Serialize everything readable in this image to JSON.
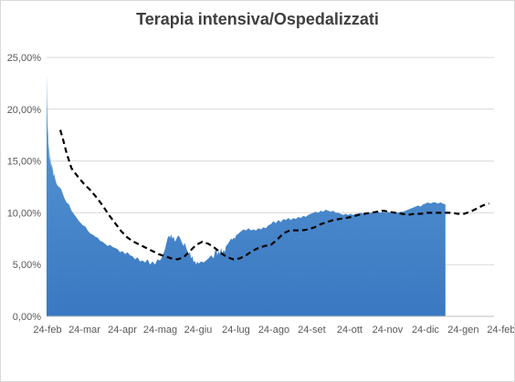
{
  "chart_data": {
    "type": "area",
    "title": "Terapia intensiva/Ospedalizzati",
    "xlabel": "",
    "ylabel": "",
    "ylim": [
      0,
      25
    ],
    "y_ticks": [
      "0,00%",
      "5,00%",
      "10,00%",
      "15,00%",
      "20,00%",
      "25,00%"
    ],
    "x_ticks": [
      "24-feb",
      "24-mar",
      "24-apr",
      "24-mag",
      "24-giu",
      "24-lug",
      "24-ago",
      "24-set",
      "24-ott",
      "24-nov",
      "24-dic",
      "24-gen",
      "24-feb"
    ],
    "grid": true,
    "legend": "none",
    "colors": {
      "area_top": "#5b9bd5",
      "area_bottom": "#3a78c2",
      "line": "#000000",
      "grid": "#d9d9d9",
      "axis": "#bfbfbf"
    },
    "series": [
      {
        "type": "area",
        "points": [
          [
            0,
            23.5
          ],
          [
            0.3,
            21.0
          ],
          [
            0.6,
            19.5
          ],
          [
            0.9,
            17.5
          ],
          [
            1.2,
            18.5
          ],
          [
            1.5,
            16.0
          ],
          [
            1.8,
            16.8
          ],
          [
            2.1,
            15.2
          ],
          [
            2.4,
            16.0
          ],
          [
            2.7,
            14.8
          ],
          [
            3.0,
            15.4
          ],
          [
            3.5,
            14.5
          ],
          [
            4.0,
            14.8
          ],
          [
            4.5,
            14.0
          ],
          [
            5,
            14.6
          ],
          [
            5.5,
            13.5
          ],
          [
            6,
            13.8
          ],
          [
            7,
            13.2
          ],
          [
            8,
            12.8
          ],
          [
            9,
            12.6
          ],
          [
            10,
            12.5
          ],
          [
            11,
            12.4
          ],
          [
            12,
            12.2
          ],
          [
            14,
            11.5
          ],
          [
            16,
            11.0
          ],
          [
            18,
            10.8
          ],
          [
            20,
            10.2
          ],
          [
            23,
            9.7
          ],
          [
            26,
            9.2
          ],
          [
            29,
            8.8
          ],
          [
            31,
            8.7
          ],
          [
            33,
            8.3
          ],
          [
            35,
            8.0
          ],
          [
            37,
            7.9
          ],
          [
            39,
            7.7
          ],
          [
            41,
            7.6
          ],
          [
            43,
            7.3
          ],
          [
            45,
            7.2
          ],
          [
            47,
            7.0
          ],
          [
            49,
            6.8
          ],
          [
            51,
            6.9
          ],
          [
            53,
            6.7
          ],
          [
            55,
            6.6
          ],
          [
            57,
            6.5
          ],
          [
            59,
            6.2
          ],
          [
            61,
            6.3
          ],
          [
            63,
            6.0
          ],
          [
            65,
            6.2
          ],
          [
            67,
            5.9
          ],
          [
            69,
            5.8
          ],
          [
            71,
            5.5
          ],
          [
            73,
            5.7
          ],
          [
            75,
            5.3
          ],
          [
            77,
            5.4
          ],
          [
            79,
            5.2
          ],
          [
            81,
            5.5
          ],
          [
            83,
            5.0
          ],
          [
            85,
            5.3
          ],
          [
            87,
            5.0
          ],
          [
            89,
            5.5
          ],
          [
            91,
            5.4
          ],
          [
            93,
            5.8
          ],
          [
            95,
            6.5
          ],
          [
            96,
            7.0
          ],
          [
            97,
            7.5
          ],
          [
            98,
            7.8
          ],
          [
            99,
            7.6
          ],
          [
            100,
            7.9
          ],
          [
            101,
            7.5
          ],
          [
            102,
            7.7
          ],
          [
            103,
            7.2
          ],
          [
            104,
            7.4
          ],
          [
            105,
            7.7
          ],
          [
            106,
            7.8
          ],
          [
            107,
            7.6
          ],
          [
            108,
            7.3
          ],
          [
            109,
            7.0
          ],
          [
            110,
            6.8
          ],
          [
            111,
            7.1
          ],
          [
            112,
            6.6
          ],
          [
            113,
            6.3
          ],
          [
            114,
            6.0
          ],
          [
            115,
            6.2
          ],
          [
            116,
            5.6
          ],
          [
            117,
            5.8
          ],
          [
            118,
            5.2
          ],
          [
            119,
            5.4
          ],
          [
            120,
            5.0
          ],
          [
            121,
            5.3
          ],
          [
            122,
            5.1
          ],
          [
            124,
            5.3
          ],
          [
            126,
            5.2
          ],
          [
            128,
            5.4
          ],
          [
            130,
            5.6
          ],
          [
            132,
            5.9
          ],
          [
            134,
            5.6
          ],
          [
            135,
            6.2
          ],
          [
            136,
            6.6
          ],
          [
            137,
            5.9
          ],
          [
            138,
            6.3
          ],
          [
            139,
            6.0
          ],
          [
            140,
            6.6
          ],
          [
            141,
            6.1
          ],
          [
            142,
            6.4
          ],
          [
            143,
            6.2
          ],
          [
            144,
            6.8
          ],
          [
            145,
            6.9
          ],
          [
            146,
            7.1
          ],
          [
            147,
            7.3
          ],
          [
            148,
            7.5
          ],
          [
            149,
            7.4
          ],
          [
            150,
            7.6
          ],
          [
            151,
            7.5
          ],
          [
            152,
            7.8
          ],
          [
            154,
            8.0
          ],
          [
            156,
            8.2
          ],
          [
            158,
            8.4
          ],
          [
            160,
            8.3
          ],
          [
            162,
            8.5
          ],
          [
            164,
            8.3
          ],
          [
            166,
            8.4
          ],
          [
            168,
            8.3
          ],
          [
            170,
            8.5
          ],
          [
            172,
            8.4
          ],
          [
            174,
            8.6
          ],
          [
            176,
            8.5
          ],
          [
            178,
            8.8
          ],
          [
            180,
            8.9
          ],
          [
            182,
            9.2
          ],
          [
            184,
            9.0
          ],
          [
            186,
            9.3
          ],
          [
            188,
            9.1
          ],
          [
            190,
            9.4
          ],
          [
            192,
            9.3
          ],
          [
            194,
            9.5
          ],
          [
            196,
            9.3
          ],
          [
            198,
            9.5
          ],
          [
            200,
            9.4
          ],
          [
            202,
            9.6
          ],
          [
            204,
            9.5
          ],
          [
            206,
            9.7
          ],
          [
            208,
            9.6
          ],
          [
            210,
            9.8
          ],
          [
            212,
            9.9
          ],
          [
            214,
            10.0
          ],
          [
            216,
            10.1
          ],
          [
            218,
            10.0
          ],
          [
            220,
            10.2
          ],
          [
            222,
            10.1
          ],
          [
            224,
            10.3
          ],
          [
            226,
            10.2
          ],
          [
            228,
            10.1
          ],
          [
            230,
            10.2
          ],
          [
            232,
            10.0
          ],
          [
            234,
            10.0
          ],
          [
            236,
            9.9
          ],
          [
            238,
            9.8
          ],
          [
            240,
            9.9
          ],
          [
            242,
            9.8
          ],
          [
            244,
            9.9
          ],
          [
            246,
            9.8
          ],
          [
            248,
            9.9
          ],
          [
            250,
            9.9
          ],
          [
            252,
            10.0
          ],
          [
            254,
            9.9
          ],
          [
            256,
            10.0
          ],
          [
            258,
            10.0
          ],
          [
            260,
            10.0
          ],
          [
            262,
            10.1
          ],
          [
            264,
            10.0
          ],
          [
            266,
            10.1
          ],
          [
            268,
            10.0
          ],
          [
            270,
            10.1
          ],
          [
            272,
            10.0
          ],
          [
            274,
            10.1
          ],
          [
            276,
            10.0
          ],
          [
            278,
            10.0
          ],
          [
            280,
            10.1
          ],
          [
            282,
            10.0
          ],
          [
            284,
            10.1
          ],
          [
            286,
            10.1
          ],
          [
            288,
            10.2
          ],
          [
            290,
            10.3
          ],
          [
            292,
            10.4
          ],
          [
            294,
            10.5
          ],
          [
            296,
            10.6
          ],
          [
            298,
            10.7
          ],
          [
            300,
            10.6
          ],
          [
            302,
            10.8
          ],
          [
            304,
            10.9
          ],
          [
            306,
            11.0
          ],
          [
            308,
            10.9
          ],
          [
            310,
            11.0
          ],
          [
            312,
            11.0
          ],
          [
            314,
            10.9
          ],
          [
            316,
            11.0
          ],
          [
            318,
            10.9
          ],
          [
            320,
            10.8
          ]
        ]
      },
      {
        "type": "line",
        "style": "dashed",
        "points": [
          [
            11,
            18.0
          ],
          [
            13,
            17.2
          ],
          [
            16,
            15.8
          ],
          [
            20,
            14.3
          ],
          [
            25,
            13.5
          ],
          [
            30,
            12.8
          ],
          [
            35,
            12.2
          ],
          [
            40,
            11.5
          ],
          [
            45,
            10.7
          ],
          [
            50,
            9.8
          ],
          [
            55,
            9.0
          ],
          [
            60,
            8.2
          ],
          [
            65,
            7.6
          ],
          [
            70,
            7.2
          ],
          [
            75,
            6.9
          ],
          [
            80,
            6.6
          ],
          [
            85,
            6.3
          ],
          [
            90,
            6.0
          ],
          [
            95,
            5.8
          ],
          [
            100,
            5.6
          ],
          [
            105,
            5.5
          ],
          [
            110,
            5.7
          ],
          [
            115,
            6.3
          ],
          [
            120,
            6.9
          ],
          [
            125,
            7.2
          ],
          [
            130,
            7.0
          ],
          [
            135,
            6.6
          ],
          [
            140,
            6.1
          ],
          [
            145,
            5.7
          ],
          [
            150,
            5.5
          ],
          [
            155,
            5.6
          ],
          [
            160,
            5.9
          ],
          [
            165,
            6.3
          ],
          [
            170,
            6.6
          ],
          [
            175,
            6.8
          ],
          [
            180,
            6.9
          ],
          [
            185,
            7.4
          ],
          [
            190,
            8.0
          ],
          [
            195,
            8.3
          ],
          [
            200,
            8.3
          ],
          [
            205,
            8.3
          ],
          [
            210,
            8.4
          ],
          [
            215,
            8.6
          ],
          [
            220,
            8.9
          ],
          [
            225,
            9.1
          ],
          [
            230,
            9.3
          ],
          [
            235,
            9.4
          ],
          [
            240,
            9.5
          ],
          [
            245,
            9.6
          ],
          [
            250,
            9.8
          ],
          [
            255,
            9.9
          ],
          [
            260,
            10.0
          ],
          [
            265,
            10.1
          ],
          [
            270,
            10.2
          ],
          [
            275,
            10.1
          ],
          [
            280,
            10.0
          ],
          [
            285,
            9.9
          ],
          [
            290,
            9.8
          ],
          [
            295,
            9.9
          ],
          [
            300,
            9.9
          ],
          [
            305,
            10.0
          ],
          [
            310,
            10.0
          ],
          [
            315,
            10.0
          ],
          [
            320,
            10.0
          ],
          [
            325,
            10.0
          ],
          [
            330,
            9.9
          ],
          [
            335,
            9.9
          ],
          [
            340,
            10.1
          ],
          [
            345,
            10.4
          ],
          [
            350,
            10.7
          ],
          [
            355,
            10.9
          ]
        ]
      }
    ]
  }
}
